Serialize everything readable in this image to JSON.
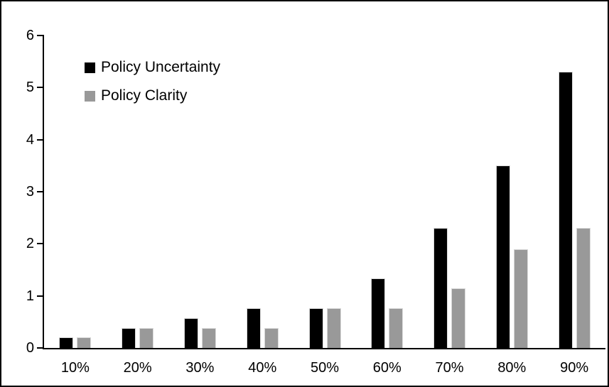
{
  "chart_data": {
    "type": "bar",
    "title": "",
    "xlabel": "",
    "ylabel": "",
    "categories": [
      "10%",
      "20%",
      "30%",
      "40%",
      "50%",
      "60%",
      "70%",
      "80%",
      "90%"
    ],
    "series": [
      {
        "name": "Policy Uncertainty",
        "color": "#000000",
        "values": [
          0.2,
          0.38,
          0.57,
          0.77,
          0.77,
          1.33,
          2.3,
          3.5,
          5.3
        ]
      },
      {
        "name": "Policy Clarity",
        "color": "#999999",
        "values": [
          0.2,
          0.38,
          0.38,
          0.38,
          0.77,
          0.77,
          1.15,
          1.9,
          2.3
        ]
      }
    ],
    "ylim": [
      0,
      6
    ],
    "yticks": [
      0,
      1,
      2,
      3,
      4,
      5,
      6
    ],
    "grid": false,
    "legend_position": "top-left",
    "bar_border_color": "#d9d9d9",
    "axis_color": "#000000",
    "background_color": "#ffffff"
  }
}
